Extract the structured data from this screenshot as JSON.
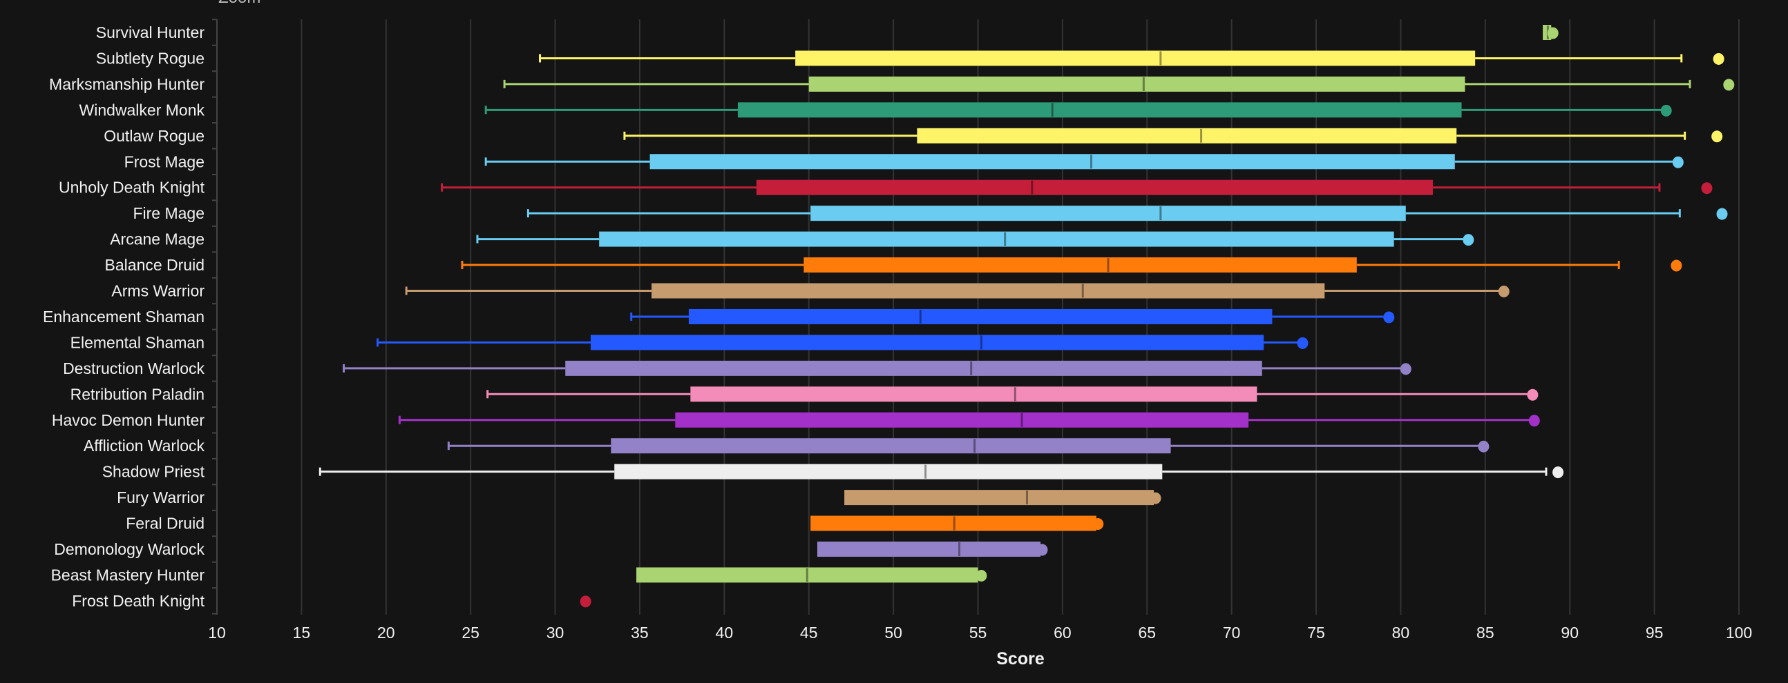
{
  "zoom_label": "Zoom",
  "chart_data": {
    "type": "boxplot",
    "orientation": "horizontal",
    "title": "",
    "xlabel": "Score",
    "ylabel": "",
    "xlim": [
      10,
      100
    ],
    "xticks": [
      10,
      15,
      20,
      25,
      30,
      35,
      40,
      45,
      50,
      55,
      60,
      65,
      70,
      75,
      80,
      85,
      90,
      95,
      100
    ],
    "grid": true,
    "background": "#141414",
    "series": [
      {
        "name": "Survival Hunter",
        "color": "#AAD372",
        "low": null,
        "q1": 88.4,
        "median": 88.7,
        "q3": 88.9,
        "high": null,
        "point": 89.0
      },
      {
        "name": "Subtlety Rogue",
        "color": "#FFF468",
        "low": 29.1,
        "q1": 44.2,
        "median": 65.8,
        "q3": 84.4,
        "high": 96.6,
        "point": 98.8
      },
      {
        "name": "Marksmanship Hunter",
        "color": "#AAD372",
        "low": 27.0,
        "q1": 45.0,
        "median": 64.8,
        "q3": 83.8,
        "high": 97.1,
        "point": 99.4
      },
      {
        "name": "Windwalker Monk",
        "color": "#2E9B78",
        "low": 25.9,
        "q1": 40.8,
        "median": 59.4,
        "q3": 83.6,
        "high": null,
        "point": 95.7
      },
      {
        "name": "Outlaw Rogue",
        "color": "#FFF468",
        "low": 34.1,
        "q1": 51.4,
        "median": 68.2,
        "q3": 83.3,
        "high": 96.8,
        "point": 98.7
      },
      {
        "name": "Frost Mage",
        "color": "#69CCF0",
        "low": 25.9,
        "q1": 35.6,
        "median": 61.7,
        "q3": 83.2,
        "high": null,
        "point": 96.4
      },
      {
        "name": "Unholy Death Knight",
        "color": "#C41E3A",
        "low": 23.3,
        "q1": 41.9,
        "median": 58.2,
        "q3": 81.9,
        "high": 95.3,
        "point": 98.1
      },
      {
        "name": "Fire Mage",
        "color": "#69CCF0",
        "low": 28.4,
        "q1": 45.1,
        "median": 65.8,
        "q3": 80.3,
        "high": 96.5,
        "point": 99.0
      },
      {
        "name": "Arcane Mage",
        "color": "#69CCF0",
        "low": 25.4,
        "q1": 32.6,
        "median": 56.6,
        "q3": 79.6,
        "high": null,
        "point": 84.0
      },
      {
        "name": "Balance Druid",
        "color": "#FF7C0A",
        "low": 24.5,
        "q1": 44.7,
        "median": 62.7,
        "q3": 77.4,
        "high": 92.9,
        "point": 96.3
      },
      {
        "name": "Arms Warrior",
        "color": "#C69B6D",
        "low": 21.2,
        "q1": 35.7,
        "median": 61.2,
        "q3": 75.5,
        "high": null,
        "point": 86.1
      },
      {
        "name": "Enhancement Shaman",
        "color": "#2459FF",
        "low": 34.5,
        "q1": 37.9,
        "median": 51.6,
        "q3": 72.4,
        "high": null,
        "point": 79.3
      },
      {
        "name": "Elemental Shaman",
        "color": "#2459FF",
        "low": 19.5,
        "q1": 32.1,
        "median": 55.2,
        "q3": 71.9,
        "high": null,
        "point": 74.2
      },
      {
        "name": "Destruction Warlock",
        "color": "#9482C9",
        "low": 17.5,
        "q1": 30.6,
        "median": 54.6,
        "q3": 71.8,
        "high": null,
        "point": 80.3
      },
      {
        "name": "Retribution Paladin",
        "color": "#F48CBA",
        "low": 26.0,
        "q1": 38.0,
        "median": 57.2,
        "q3": 71.5,
        "high": null,
        "point": 87.8
      },
      {
        "name": "Havoc Demon Hunter",
        "color": "#A330C9",
        "low": 20.8,
        "q1": 37.1,
        "median": 57.6,
        "q3": 71.0,
        "high": null,
        "point": 87.9
      },
      {
        "name": "Affliction Warlock",
        "color": "#9482C9",
        "low": 23.7,
        "q1": 33.3,
        "median": 54.8,
        "q3": 66.4,
        "high": null,
        "point": 84.9
      },
      {
        "name": "Shadow Priest",
        "color": "#EEEEEE",
        "low": 16.1,
        "q1": 33.5,
        "median": 51.9,
        "q3": 65.9,
        "high": 88.6,
        "point": 89.3
      },
      {
        "name": "Fury Warrior",
        "color": "#C69B6D",
        "low": null,
        "q1": 47.1,
        "median": 57.9,
        "q3": 65.4,
        "high": null,
        "point": 65.5
      },
      {
        "name": "Feral Druid",
        "color": "#FF7C0A",
        "low": null,
        "q1": 45.1,
        "median": 53.6,
        "q3": 62.0,
        "high": null,
        "point": 62.1
      },
      {
        "name": "Demonology Warlock",
        "color": "#9482C9",
        "low": null,
        "q1": 45.5,
        "median": 53.9,
        "q3": 58.7,
        "high": null,
        "point": 58.8
      },
      {
        "name": "Beast Mastery Hunter",
        "color": "#AAD372",
        "low": null,
        "q1": 34.8,
        "median": 44.9,
        "q3": 55.0,
        "high": null,
        "point": 55.2
      },
      {
        "name": "Frost Death Knight",
        "color": "#C41E3A",
        "low": null,
        "q1": null,
        "median": null,
        "q3": null,
        "high": null,
        "point": 31.8
      }
    ]
  }
}
